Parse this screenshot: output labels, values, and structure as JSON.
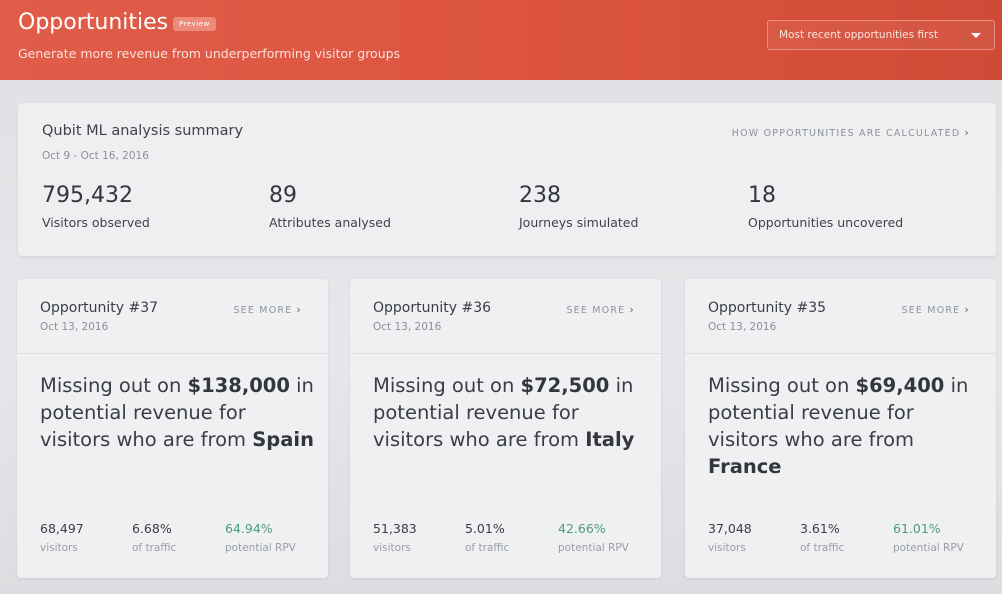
{
  "header": {
    "title": "Opportunities",
    "badge": "Preview",
    "subtitle": "Generate more revenue from underperforming visitor groups",
    "sort_select": "Most recent opportunities first"
  },
  "summary": {
    "title": "Qubit ML analysis summary",
    "date_range": "Oct 9 - Oct 16, 2016",
    "link": "HOW OPPORTUNITIES ARE CALCULATED",
    "stats": [
      {
        "value": "795,432",
        "label": "Visitors observed"
      },
      {
        "value": "89",
        "label": "Attributes analysed"
      },
      {
        "value": "238",
        "label": "Journeys simulated"
      },
      {
        "value": "18",
        "label": "Opportunities uncovered"
      }
    ]
  },
  "cards": [
    {
      "title": "Opportunity #37",
      "date": "Oct 13, 2016",
      "see_more": "SEE MORE",
      "msg_prefix": "Missing out on ",
      "amount": "$138,000",
      "msg_middle": " in potential revenue for visitors who are from ",
      "country": "Spain",
      "visitors": "68,497",
      "visitors_label": "visitors",
      "traffic": "6.68%",
      "traffic_label": "of traffic",
      "rpv": "64.94%",
      "rpv_label": "potential RPV"
    },
    {
      "title": "Opportunity #36",
      "date": "Oct 13, 2016",
      "see_more": "SEE MORE",
      "msg_prefix": "Missing out on ",
      "amount": "$72,500",
      "msg_middle": " in potential revenue for visitors who are from ",
      "country": "Italy",
      "visitors": "51,383",
      "visitors_label": "visitors",
      "traffic": "5.01%",
      "traffic_label": "of traffic",
      "rpv": "42.66%",
      "rpv_label": "potential RPV"
    },
    {
      "title": "Opportunity #35",
      "date": "Oct 13, 2016",
      "see_more": "SEE MORE",
      "msg_prefix": "Missing out on ",
      "amount": "$69,400",
      "msg_middle": " in potential revenue for visitors who are from ",
      "country": "France",
      "visitors": "37,048",
      "visitors_label": "visitors",
      "traffic": "3.61%",
      "traffic_label": "of traffic",
      "rpv": "61.01%",
      "rpv_label": "potential RPV"
    }
  ],
  "icons": {
    "chevron_right": "chevron-right-icon",
    "caret_down": "caret-down-icon"
  },
  "colors": {
    "header_accent": "#dd5540",
    "positive_metric": "#4f9c82"
  }
}
